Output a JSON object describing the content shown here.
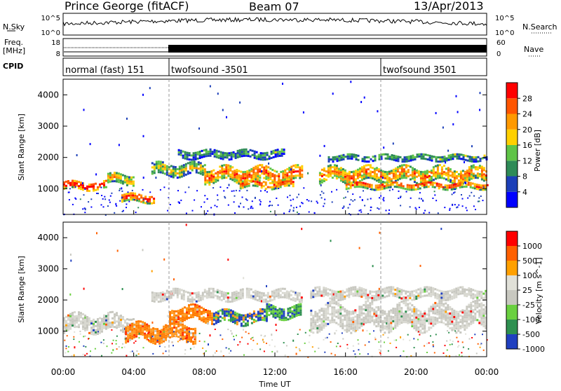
{
  "header": {
    "station": "Prince George (fitACF)",
    "beam": "Beam 07",
    "date": "13/Apr/2013"
  },
  "strips": {
    "nsky_label": "N.Sky",
    "nsky_ticks": [
      "10^5",
      "10^0"
    ],
    "nsearch_label": "N.Search",
    "nsearch_ticks": [
      "10^5",
      "10^0"
    ],
    "freq_label_1": "Freq.",
    "freq_label_2": "[MHz]",
    "freq_ticks": [
      "18",
      "8"
    ],
    "nave_label": "Nave",
    "nave_ticks": [
      "60",
      "0"
    ],
    "cpid_label": "CPID",
    "cpid_segments": [
      {
        "name": "normal (fast) 151",
        "start_h": 0,
        "end_h": 6
      },
      {
        "name": "twofsound -3501",
        "start_h": 6,
        "end_h": 18
      },
      {
        "name": "twofsound 3501",
        "start_h": 18,
        "end_h": 24
      }
    ]
  },
  "chart_data": [
    {
      "type": "heatmap",
      "quantity": "power",
      "ylabel": "Slant Range [km]",
      "xlim_hours": [
        0,
        24
      ],
      "ylim": [
        180,
        4500
      ],
      "yticks": [
        "1000",
        "2000",
        "3000",
        "4000"
      ],
      "colorbar_label": "Power [dB]",
      "colorbar_ticks": [
        "4",
        "8",
        "12",
        "16",
        "20",
        "24",
        "28"
      ],
      "colorbar_colors": [
        "#0000ff",
        "#1c3fb8",
        "#2e8b57",
        "#5fc447",
        "#ffd000",
        "#ff9900",
        "#ff5500",
        "#ff0000"
      ],
      "bands": [
        {
          "start_h": 0.0,
          "end_h": 2.5,
          "center_km": 1150,
          "width_km": 250,
          "level": 0.9
        },
        {
          "start_h": 2.5,
          "end_h": 4.0,
          "center_km": 1350,
          "width_km": 300,
          "level": 0.6
        },
        {
          "start_h": 3.3,
          "end_h": 5.2,
          "center_km": 750,
          "width_km": 250,
          "level": 0.85
        },
        {
          "start_h": 5.0,
          "end_h": 8.0,
          "center_km": 1650,
          "width_km": 350,
          "level": 0.5
        },
        {
          "start_h": 6.5,
          "end_h": 12.5,
          "center_km": 2150,
          "width_km": 250,
          "level": 0.3
        },
        {
          "start_h": 8.0,
          "end_h": 13.5,
          "center_km": 1500,
          "width_km": 450,
          "level": 0.75
        },
        {
          "start_h": 10.0,
          "end_h": 13.0,
          "center_km": 1200,
          "width_km": 250,
          "level": 0.8
        },
        {
          "start_h": 14.5,
          "end_h": 24.0,
          "center_km": 1500,
          "width_km": 450,
          "level": 0.7
        },
        {
          "start_h": 15.0,
          "end_h": 24.0,
          "center_km": 2050,
          "width_km": 200,
          "level": 0.35
        },
        {
          "start_h": 16.0,
          "end_h": 24.0,
          "center_km": 1150,
          "width_km": 200,
          "level": 0.8
        }
      ]
    },
    {
      "type": "heatmap",
      "quantity": "velocity",
      "ylabel": "Slant Range [km]",
      "xlabel": "Time UT",
      "xticks": [
        "00:00",
        "04:00",
        "08:00",
        "12:00",
        "16:00",
        "20:00",
        "00:00"
      ],
      "xlim_hours": [
        0,
        24
      ],
      "ylim": [
        180,
        4500
      ],
      "yticks": [
        "1000",
        "2000",
        "3000",
        "4000"
      ],
      "colorbar_label": "Velocity [m s^-1]",
      "colorbar_ticks": [
        "1000",
        "500",
        "100",
        "25",
        "-25",
        "-100",
        "-500",
        "-1000"
      ],
      "colorbar_colors": [
        "#2040c0",
        "#2e9050",
        "#6ad040",
        "#c8c8c0",
        "#e0e0d8",
        "#ffa000",
        "#ff6000",
        "#ff0000"
      ],
      "bands": [
        {
          "start_h": 0.0,
          "end_h": 4.0,
          "center_km": 1300,
          "width_km": 500,
          "kind": "ground"
        },
        {
          "start_h": 3.5,
          "end_h": 7.5,
          "center_km": 1000,
          "width_km": 500,
          "kind": "neg"
        },
        {
          "start_h": 6.0,
          "end_h": 8.5,
          "center_km": 1600,
          "width_km": 450,
          "kind": "neg"
        },
        {
          "start_h": 5.0,
          "end_h": 13.5,
          "center_km": 2200,
          "width_km": 300,
          "kind": "ground"
        },
        {
          "start_h": 8.5,
          "end_h": 11.5,
          "center_km": 1500,
          "width_km": 400,
          "kind": "pos"
        },
        {
          "start_h": 11.5,
          "end_h": 13.5,
          "center_km": 1650,
          "width_km": 350,
          "kind": "green"
        },
        {
          "start_h": 14.0,
          "end_h": 24.0,
          "center_km": 1500,
          "width_km": 700,
          "kind": "ground"
        },
        {
          "start_h": 14.0,
          "end_h": 24.0,
          "center_km": 2250,
          "width_km": 300,
          "kind": "ground"
        }
      ]
    }
  ]
}
